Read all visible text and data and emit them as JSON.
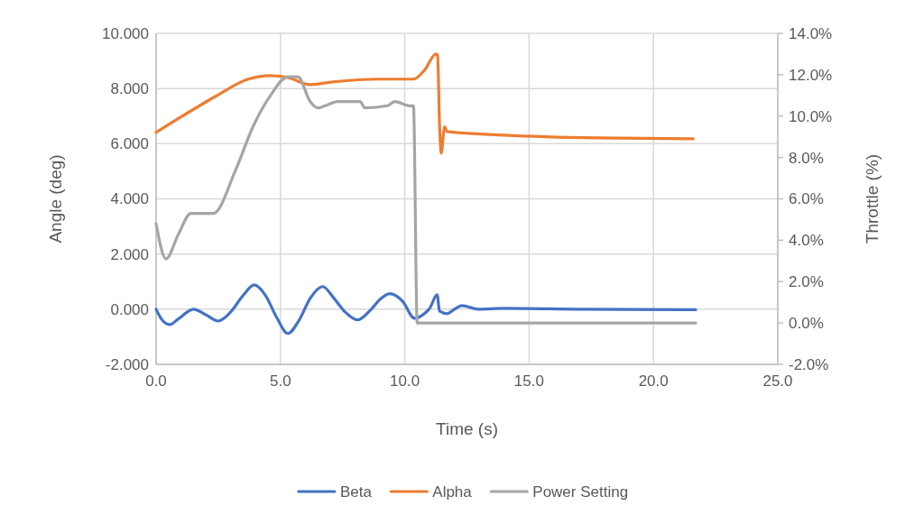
{
  "chart_data": {
    "type": "line",
    "xlabel": "Time (s)",
    "ylabel": "Angle (deg)",
    "y2label": "Throttle (%)",
    "xlim": [
      0,
      25
    ],
    "xticks": [
      {
        "value": 0,
        "label": "0.0"
      },
      {
        "value": 5,
        "label": "5.0"
      },
      {
        "value": 10,
        "label": "10.0"
      },
      {
        "value": 15,
        "label": "15.0"
      },
      {
        "value": 20,
        "label": "20.0"
      },
      {
        "value": 25,
        "label": "25.0"
      }
    ],
    "ylim": [
      -2,
      10
    ],
    "yticks": [
      {
        "value": -2,
        "label": "-2.000"
      },
      {
        "value": 0,
        "label": "0.000"
      },
      {
        "value": 2,
        "label": "2.000"
      },
      {
        "value": 4,
        "label": "4.000"
      },
      {
        "value": 6,
        "label": "6.000"
      },
      {
        "value": 8,
        "label": "8.000"
      },
      {
        "value": 10,
        "label": "10.000"
      }
    ],
    "y2lim": [
      -2,
      14
    ],
    "y2ticks": [
      {
        "value": -2,
        "label": "-2.0%"
      },
      {
        "value": 0,
        "label": "0.0%"
      },
      {
        "value": 2,
        "label": "2.0%"
      },
      {
        "value": 4,
        "label": "4.0%"
      },
      {
        "value": 6,
        "label": "6.0%"
      },
      {
        "value": 8,
        "label": "8.0%"
      },
      {
        "value": 10,
        "label": "10.0%"
      },
      {
        "value": 12,
        "label": "12.0%"
      },
      {
        "value": 14,
        "label": "14.0%"
      }
    ],
    "grid": true,
    "legend": "bottom",
    "line_style": "solid",
    "marker": "none",
    "series": [
      {
        "name": "Beta",
        "color": "#4472c4",
        "x": [
          0,
          0.25,
          0.55,
          0.9,
          1.5,
          2.0,
          2.5,
          3.0,
          3.5,
          3.95,
          4.4,
          4.85,
          5.3,
          5.75,
          6.2,
          6.7,
          7.15,
          7.6,
          8.1,
          8.6,
          9.0,
          9.4,
          9.9,
          10.4,
          10.8,
          11.0,
          11.3,
          11.4,
          11.7,
          12.0,
          12.3,
          12.95,
          14,
          17,
          21.7
        ],
        "values": [
          0,
          -0.4,
          -0.56,
          -0.35,
          0,
          -0.2,
          -0.43,
          -0.1,
          0.5,
          0.88,
          0.5,
          -0.3,
          -0.88,
          -0.4,
          0.4,
          0.82,
          0.4,
          -0.1,
          -0.39,
          -0.05,
          0.35,
          0.56,
          0.3,
          -0.33,
          -0.15,
          0.03,
          0.52,
          -0.07,
          -0.16,
          0,
          0.13,
          0,
          0.03,
          0,
          -0.02
        ]
      },
      {
        "name": "Alpha",
        "color": "#ed7d31",
        "x": [
          0,
          1.0,
          2.4,
          3.7,
          4.6,
          5.3,
          6.2,
          7.1,
          9.0,
          10.35,
          10.8,
          11.25,
          11.32,
          11.4,
          11.47,
          11.55,
          11.6,
          11.7,
          14,
          17.7,
          21.6
        ],
        "values": [
          6.41,
          6.97,
          7.72,
          8.34,
          8.47,
          8.4,
          8.14,
          8.24,
          8.34,
          8.34,
          8.67,
          9.25,
          9.2,
          6.64,
          5.66,
          6.31,
          6.61,
          6.44,
          6.31,
          6.21,
          6.18
        ]
      },
      {
        "name": "Power Setting",
        "color": "#a5a5a5",
        "axis": "y2",
        "x": [
          0,
          0.4,
          0.9,
          1.4,
          2.3,
          3.2,
          3.9,
          4.6,
          5.3,
          5.7,
          6.2,
          6.5,
          6.8,
          7.3,
          8.2,
          8.4,
          9.3,
          9.6,
          10.2,
          10.35,
          10.5,
          21.7
        ],
        "values": [
          4.8,
          3.1,
          4.3,
          5.3,
          5.3,
          7.4,
          9.5,
          11.0,
          11.9,
          11.9,
          10.7,
          10.4,
          10.5,
          10.7,
          10.7,
          10.4,
          10.5,
          10.7,
          10.5,
          10.5,
          0,
          0
        ]
      }
    ]
  }
}
